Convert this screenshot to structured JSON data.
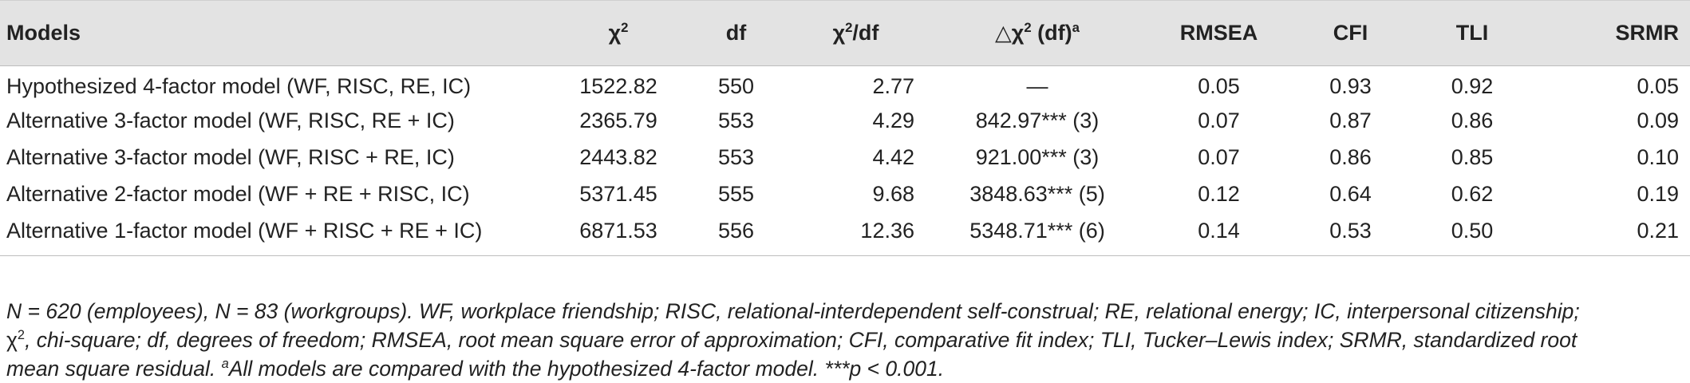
{
  "table": {
    "headers": {
      "models": "Models",
      "chi2": "χ",
      "chi2_sup": "2",
      "df": "df",
      "chi2df_pre": "χ",
      "chi2df_sup": "2",
      "chi2df_post": "/df",
      "delta_pre": "△χ",
      "delta_sup": "2",
      "delta_post": " (df)",
      "delta_note": "a",
      "rmsea": "RMSEA",
      "cfi": "CFI",
      "tli": "TLI",
      "srmr": "SRMR"
    },
    "rows": [
      {
        "model": "Hypothesized 4-factor model (WF, RISC, RE, IC)",
        "chi2": "1522.82",
        "df": "550",
        "chi2df": "2.77",
        "delta": "—",
        "rmsea": "0.05",
        "cfi": "0.93",
        "tli": "0.92",
        "srmr": "0.05"
      },
      {
        "model": "Alternative 3-factor model (WF, RISC, RE + IC)",
        "chi2": "2365.79",
        "df": "553",
        "chi2df": "4.29",
        "delta": "842.97*** (3)",
        "rmsea": "0.07",
        "cfi": "0.87",
        "tli": "0.86",
        "srmr": "0.09"
      },
      {
        "model": "Alternative 3-factor model (WF, RISC + RE, IC)",
        "chi2": "2443.82",
        "df": "553",
        "chi2df": "4.42",
        "delta": "921.00*** (3)",
        "rmsea": "0.07",
        "cfi": "0.86",
        "tli": "0.85",
        "srmr": "0.10"
      },
      {
        "model": "Alternative 2-factor model (WF + RE + RISC, IC)",
        "chi2": "5371.45",
        "df": "555",
        "chi2df": "9.68",
        "delta": "3848.63*** (5)",
        "rmsea": "0.12",
        "cfi": "0.64",
        "tli": "0.62",
        "srmr": "0.19"
      },
      {
        "model": "Alternative 1-factor model (WF + RISC + RE + IC)",
        "chi2": "6871.53",
        "df": "556",
        "chi2df": "12.36",
        "delta": "5348.71*** (6)",
        "rmsea": "0.14",
        "cfi": "0.53",
        "tli": "0.50",
        "srmr": "0.21"
      }
    ]
  },
  "note": {
    "line1": "N = 620 (employees), N = 83 (workgroups). WF, workplace friendship; RISC, relational-interdependent self-construal; RE, relational energy; IC, interpersonal citizenship;",
    "line2_chi": "χ",
    "line2_sup": "2",
    "line2_rest": ", chi-square; df, degrees of freedom; RMSEA, root mean square error of approximation; CFI, comparative fit index; TLI, Tucker–Lewis index; SRMR, standardized root",
    "line3_pre": "mean square residual. ",
    "line3_sup": "a",
    "line3_rest": "All models are compared with the hypothesized 4-factor model. ***p < 0.001."
  }
}
